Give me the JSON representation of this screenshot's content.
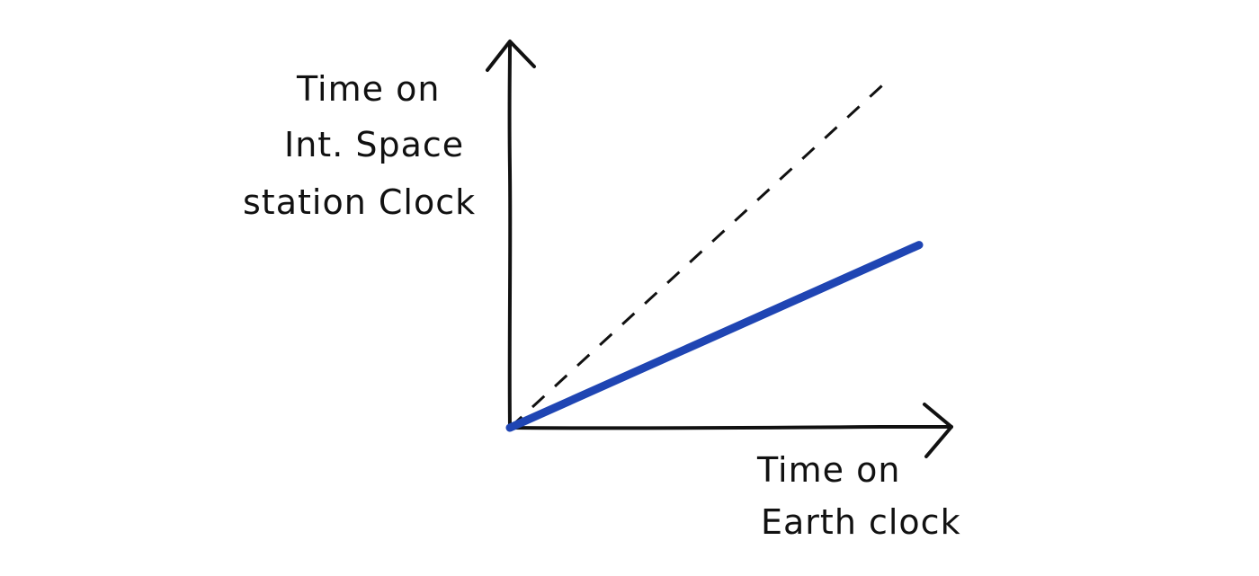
{
  "chart_data": {
    "type": "line",
    "xlabel": [
      "Time on",
      "Earth clock"
    ],
    "ylabel": [
      "Time on",
      "Int. Space",
      "station Clock"
    ],
    "x_range": [
      0,
      1
    ],
    "y_range": [
      0,
      1
    ],
    "grid": false,
    "legend": "none",
    "series": [
      {
        "values": [
          [
            0,
            0
          ],
          [
            0.912,
            0.92
          ]
        ],
        "style": "dashed",
        "color": "#111111"
      },
      {
        "values": [
          [
            0,
            0
          ],
          [
            1.0,
            0.49
          ]
        ],
        "style": "solid",
        "color": "#1f45b3"
      }
    ]
  },
  "colors": {
    "ink": "#111111",
    "series_blue": "#1f45b3",
    "background": "#ffffff"
  }
}
